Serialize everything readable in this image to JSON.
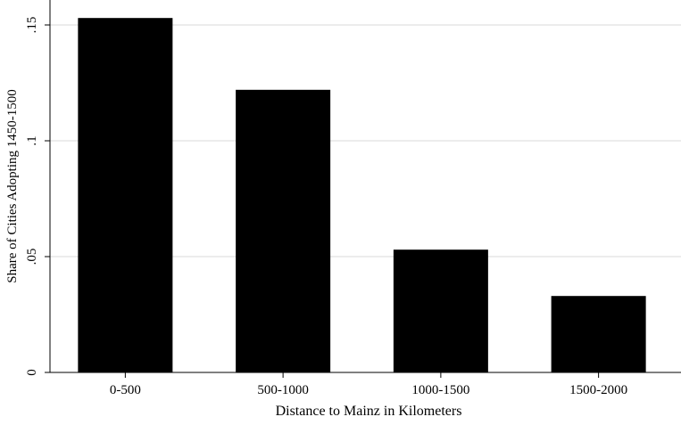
{
  "chart_data": {
    "type": "bar",
    "categories": [
      "0-500",
      "500-1000",
      "1000-1500",
      "1500-2000"
    ],
    "values": [
      0.153,
      0.122,
      0.053,
      0.033
    ],
    "xlabel": "Distance to Mainz in Kilometers",
    "ylabel": "Share of Cities Adopting 1450-1500",
    "ylim": [
      0,
      0.16
    ],
    "yticks": [
      0,
      0.05,
      0.1,
      0.15
    ],
    "ytick_labels": [
      "0",
      ".05",
      ".1",
      ".15"
    ],
    "grid": "horizontal",
    "bar_color": "#000000",
    "grid_color": "#d9d9d9"
  }
}
